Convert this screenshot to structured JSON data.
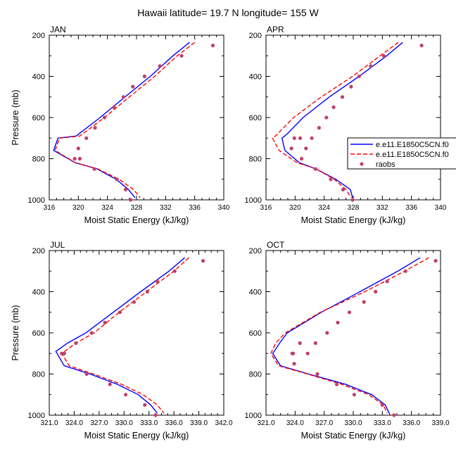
{
  "figure": {
    "title": "Hawaii  latitude= 19.7 N longitude= 155 W"
  },
  "colors": {
    "series1": "#0000ff",
    "series2": "#ff0000",
    "obs": "#c0406a",
    "axis": "#000000"
  },
  "chart_data": [
    {
      "type": "line",
      "label": "JAN",
      "xlabel": "Moist Static Energy (kJ/kg)",
      "ylabel": "Pressure (mb)",
      "xlim": [
        316,
        340
      ],
      "ylim": [
        1000,
        200
      ],
      "y_reversed": true,
      "xticks": [
        "316",
        "320",
        "324",
        "328",
        "332",
        "336",
        "340"
      ],
      "yticks": [
        "200",
        "400",
        "600",
        "800",
        "1000"
      ],
      "series": [
        {
          "style": "solid",
          "color": "#0000ff",
          "x": [
            335.3,
            333.0,
            329.9,
            326.4,
            323.0,
            319.7,
            317.2,
            316.6,
            319.6,
            322.6,
            325.2,
            326.9,
            327.8
          ],
          "y": [
            235,
            300,
            400,
            500,
            600,
            690,
            700,
            760,
            820,
            850,
            900,
            950,
            990
          ]
        },
        {
          "style": "dashed",
          "color": "#ff0000",
          "x": [
            336.0,
            333.6,
            330.5,
            327.0,
            323.6,
            320.2,
            317.4,
            316.8,
            319.6,
            322.7,
            325.6,
            327.6,
            328.5
          ],
          "y": [
            235,
            300,
            400,
            500,
            600,
            690,
            700,
            760,
            820,
            850,
            900,
            950,
            990
          ]
        },
        {
          "style": "markers",
          "color": "#c0406a",
          "x": [
            338.5,
            334.2,
            331.2,
            329.1,
            327.5,
            326.2,
            324.9,
            323.6,
            322.3,
            321.1,
            320.0,
            319.5,
            320.2,
            322.2,
            325.3,
            326.5,
            327.2
          ],
          "y": [
            250,
            300,
            350,
            400,
            450,
            500,
            550,
            600,
            650,
            700,
            750,
            800,
            800,
            850,
            900,
            950,
            1000
          ]
        }
      ]
    },
    {
      "type": "line",
      "label": "APR",
      "xlabel": "Moist Static Energy (kJ/kg)",
      "ylabel": "",
      "xlim": [
        316,
        340
      ],
      "ylim": [
        1000,
        200
      ],
      "y_reversed": true,
      "xticks": [
        "316",
        "320",
        "324",
        "328",
        "332",
        "336",
        "340"
      ],
      "yticks": [
        "200",
        "400",
        "600",
        "800",
        "1000"
      ],
      "series": [
        {
          "style": "solid",
          "color": "#0000ff",
          "x": [
            334.8,
            332.6,
            328.8,
            324.7,
            321.1,
            318.9,
            318.2,
            318.6,
            320.6,
            322.9,
            325.6,
            327.6,
            327.9
          ],
          "y": [
            235,
            300,
            400,
            500,
            600,
            680,
            700,
            760,
            820,
            850,
            900,
            950,
            990
          ]
        },
        {
          "style": "dashed",
          "color": "#ff0000",
          "x": [
            334.2,
            331.7,
            327.9,
            323.6,
            319.8,
            317.3,
            316.9,
            317.8,
            320.3,
            322.9,
            325.4,
            327.0,
            327.7
          ],
          "y": [
            235,
            300,
            400,
            500,
            600,
            690,
            700,
            760,
            820,
            850,
            900,
            950,
            990
          ]
        },
        {
          "style": "markers",
          "color": "#c0406a",
          "x": [
            337.4,
            332.2,
            330.4,
            328.8,
            327.7,
            326.5,
            325.3,
            324.3,
            323.3,
            322.3,
            321.5,
            320.7,
            319.9,
            319.5,
            320.9,
            322.8,
            324.9,
            326.6,
            327.9
          ],
          "y": [
            250,
            300,
            350,
            400,
            450,
            500,
            550,
            600,
            650,
            700,
            750,
            700,
            700,
            750,
            800,
            850,
            900,
            950,
            1000
          ]
        }
      ]
    },
    {
      "type": "line",
      "label": "JUL",
      "xlabel": "Moist Static Energy (kJ/kg)",
      "ylabel": "Pressure (mb)",
      "xlim": [
        321,
        342
      ],
      "ylim": [
        1000,
        200
      ],
      "y_reversed": true,
      "xticks": [
        "321.0",
        "324.0",
        "327.0",
        "330.0",
        "333.0",
        "336.0",
        "339.0",
        "342.0"
      ],
      "yticks": [
        "200",
        "400",
        "600",
        "800",
        "1000"
      ],
      "series": [
        {
          "style": "solid",
          "color": "#0000ff",
          "x": [
            337.3,
            335.4,
            332.0,
            328.7,
            325.4,
            323.2,
            321.8,
            322.8,
            325.9,
            329.2,
            331.7,
            333.2,
            334.0
          ],
          "y": [
            235,
            300,
            400,
            500,
            600,
            650,
            690,
            760,
            800,
            850,
            900,
            950,
            990
          ]
        },
        {
          "style": "dashed",
          "color": "#ff0000",
          "x": [
            337.8,
            336.0,
            332.7,
            329.4,
            326.4,
            324.2,
            322.5,
            323.4,
            326.3,
            329.7,
            332.3,
            334.0,
            334.8
          ],
          "y": [
            235,
            300,
            400,
            500,
            600,
            650,
            700,
            760,
            800,
            850,
            900,
            950,
            990
          ]
        },
        {
          "style": "markers",
          "color": "#c0406a",
          "x": [
            339.5,
            336.1,
            334.0,
            332.8,
            331.2,
            329.5,
            327.7,
            326.1,
            324.2,
            322.8,
            322.5,
            325.5,
            328.3,
            330.2,
            332.5,
            333.8
          ],
          "y": [
            250,
            300,
            350,
            400,
            450,
            500,
            550,
            600,
            650,
            700,
            700,
            800,
            850,
            900,
            950,
            1000
          ]
        }
      ]
    },
    {
      "type": "line",
      "label": "OCT",
      "xlabel": "Moist Static Energy (kJ/kg)",
      "ylabel": "",
      "xlim": [
        321,
        339
      ],
      "ylim": [
        1000,
        200
      ],
      "y_reversed": true,
      "xticks": [
        "321.0",
        "324.0",
        "327.0",
        "330.0",
        "333.0",
        "336.0",
        "339.0"
      ],
      "yticks": [
        "200",
        "400",
        "600",
        "800",
        "1000"
      ],
      "series": [
        {
          "style": "solid",
          "color": "#0000ff",
          "x": [
            336.9,
            334.6,
            330.7,
            326.7,
            323.2,
            322.4,
            321.7,
            322.5,
            325.4,
            329.2,
            331.9,
            333.3,
            333.7
          ],
          "y": [
            235,
            300,
            400,
            500,
            600,
            650,
            700,
            760,
            800,
            850,
            900,
            950,
            990
          ]
        },
        {
          "style": "dashed",
          "color": "#ff0000",
          "x": [
            337.8,
            335.3,
            331.2,
            326.6,
            323.0,
            322.0,
            321.5,
            322.3,
            325.3,
            328.8,
            331.6,
            333.1,
            333.5
          ],
          "y": [
            235,
            300,
            400,
            500,
            600,
            650,
            700,
            760,
            800,
            850,
            900,
            950,
            990
          ]
        },
        {
          "style": "markers",
          "color": "#c0406a",
          "x": [
            338.5,
            335.4,
            333.5,
            332.3,
            331.1,
            329.6,
            328.4,
            327.3,
            326.1,
            325.3,
            324.5,
            323.8,
            323.7,
            323.9,
            326.3,
            328.3,
            330.1,
            333.0,
            334.2
          ],
          "y": [
            250,
            300,
            350,
            400,
            450,
            500,
            550,
            600,
            650,
            700,
            650,
            700,
            700,
            750,
            800,
            850,
            900,
            950,
            1000
          ]
        }
      ]
    }
  ],
  "legend": {
    "position": "right of APR panel",
    "entries": [
      {
        "label": "e.e11.E1850C5CN.f0",
        "style": "solid",
        "color": "#0000ff"
      },
      {
        "label": "e.e11.E1850C5CN.f0",
        "style": "dashed",
        "color": "#ff0000"
      },
      {
        "label": "raobs",
        "style": "markers",
        "color": "#c0406a"
      }
    ]
  }
}
